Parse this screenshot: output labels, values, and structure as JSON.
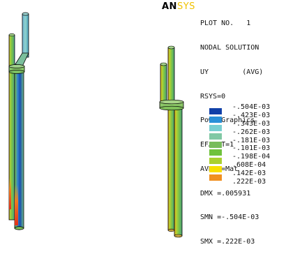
{
  "brand": {
    "part1": "AN",
    "part2": "SYS",
    "color_part1": "#000000",
    "color_part2": "#f0c200"
  },
  "info_lines": [
    "PLOT NO.   1",
    "NODAL SOLUTION",
    "UY        (AVG)",
    "RSYS=0",
    "PowerGraphics",
    "EFACET=1",
    "AVRES=Mat",
    "DMX =.005931",
    "SMN =-.504E-03",
    "SMX =.222E-03"
  ],
  "legend": [
    {
      "label": "-.504E-03",
      "color": "#1140a8"
    },
    {
      "label": "-.423E-03",
      "color": "#2a90d8"
    },
    {
      "label": "-.343E-03",
      "color": "#78cfd2"
    },
    {
      "label": "-.262E-03",
      "color": "#80c8a4"
    },
    {
      "label": "-.181E-03",
      "color": "#78bc5c"
    },
    {
      "label": "-.101E-03",
      "color": "#6fc23c"
    },
    {
      "label": "-.198E-04",
      "color": "#aad030"
    },
    {
      "label": ".608E-04",
      "color": "#f8e000"
    },
    {
      "label": ".142E-03",
      "color": "#f09020"
    },
    {
      "label": ".222E-03",
      "color": "#e8402a"
    }
  ]
}
